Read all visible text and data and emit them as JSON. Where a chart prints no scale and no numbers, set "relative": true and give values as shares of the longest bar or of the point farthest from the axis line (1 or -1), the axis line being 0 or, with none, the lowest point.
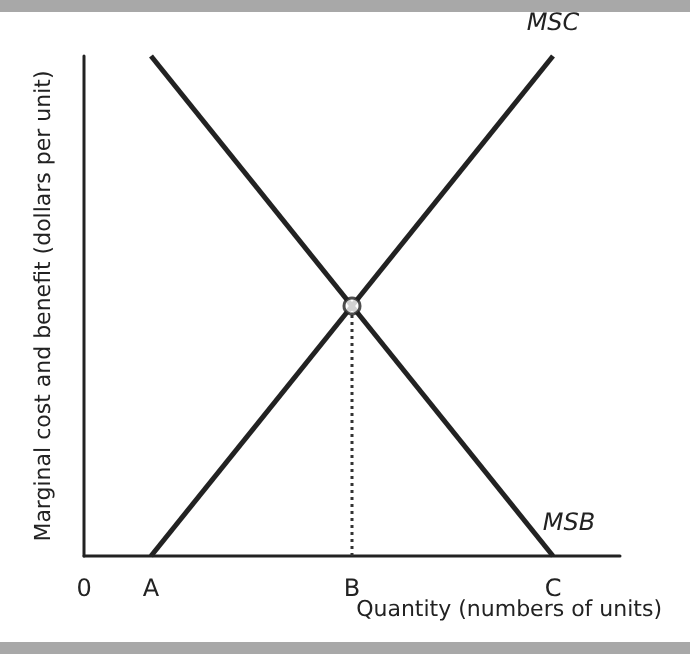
{
  "chart_data": {
    "type": "line",
    "relative": true,
    "xlabel": "Quantity (numbers of units)",
    "ylabel": "Marginal cost and benefit (dollars per unit)",
    "categories": [
      "0",
      "A",
      null,
      null,
      "B",
      null,
      null,
      "C",
      null
    ],
    "series": [
      {
        "name": "MSC",
        "color": "#222222",
        "values": [
          null,
          0,
          null,
          null,
          0.5,
          null,
          null,
          1,
          null
        ]
      },
      {
        "name": "MSB",
        "color": "#222222",
        "values": [
          null,
          1,
          null,
          null,
          0.5,
          null,
          null,
          0,
          null
        ]
      },
      {
        "type": "line",
        "x": [
          "B",
          "B"
        ],
        "values": [
          0,
          0.5
        ],
        "line_style": "dotted",
        "color": "#333333"
      },
      {
        "type": "scatter",
        "color": "#ffffff",
        "marker": "circle",
        "values": [
          null,
          null,
          null,
          null,
          0.5,
          null,
          null,
          null,
          null
        ]
      }
    ],
    "legend": false,
    "grid": false
  }
}
